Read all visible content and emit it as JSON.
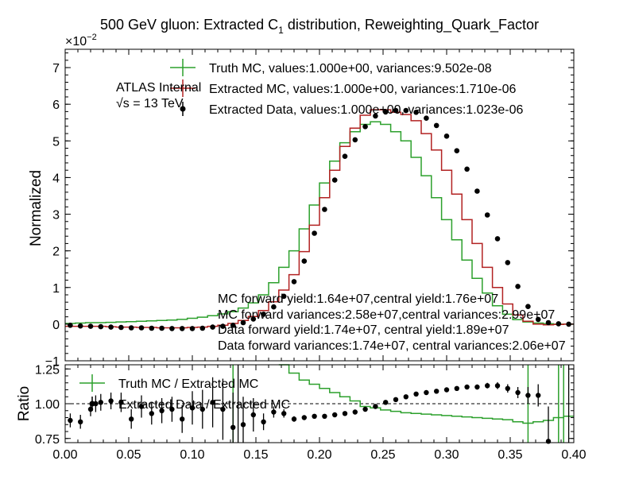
{
  "title_main": "500 GeV gluon: Extracted C",
  "title_sub": "1",
  "title_rest": " distribution, Reweighting_Quark_Factor",
  "exponent_label": "×10",
  "exponent_power": "−2",
  "atlas_label": "ATLAS Internal",
  "energy_label": "√s = 13 TeV",
  "notes": [
    "MC forward yield:1.64e+07,central yield:1.76e+07",
    "MC forward variances:2.58e+07,central variances:2.99e+07",
    "Data forward yield:1.74e+07, central yield:1.89e+07",
    "Data forward variances:1.74e+07, central variances:2.06e+07"
  ],
  "colors": {
    "truth": "#2ca02c",
    "mc": "#b22222",
    "data": "#000000"
  },
  "chart_data": [
    {
      "type": "line",
      "xlim": [
        0.0,
        0.4
      ],
      "ylim": [
        -1.0,
        7.5
      ],
      "ylabel": "Normalized",
      "yticks": [
        -1,
        0,
        1,
        2,
        3,
        4,
        5,
        6,
        7
      ],
      "ytick_labels": [
        "−1",
        "0",
        "1",
        "2",
        "3",
        "4",
        "5",
        "6",
        "7"
      ],
      "bin_width": 0.008,
      "x": [
        0.004,
        0.012,
        0.02,
        0.028,
        0.036,
        0.044,
        0.052,
        0.06,
        0.068,
        0.076,
        0.084,
        0.092,
        0.1,
        0.108,
        0.116,
        0.124,
        0.132,
        0.14,
        0.148,
        0.156,
        0.164,
        0.172,
        0.18,
        0.188,
        0.196,
        0.204,
        0.212,
        0.22,
        0.228,
        0.236,
        0.244,
        0.252,
        0.26,
        0.268,
        0.276,
        0.284,
        0.292,
        0.3,
        0.308,
        0.316,
        0.324,
        0.332,
        0.34,
        0.348,
        0.356,
        0.364,
        0.372,
        0.38,
        0.388,
        0.396
      ],
      "series": [
        {
          "name": "Truth MC, values:1.000e+00, variances:9.502e-08",
          "style": "step",
          "values": [
            0.02,
            0.03,
            0.04,
            0.04,
            0.05,
            0.06,
            0.07,
            0.08,
            0.09,
            0.1,
            0.11,
            0.13,
            0.16,
            0.19,
            0.23,
            0.28,
            0.34,
            0.44,
            0.58,
            0.8,
            1.13,
            1.55,
            2.0,
            2.6,
            3.25,
            3.85,
            4.45,
            4.95,
            5.25,
            5.45,
            5.52,
            5.45,
            5.25,
            5.0,
            4.55,
            4.05,
            3.45,
            2.85,
            2.3,
            1.75,
            1.25,
            0.85,
            0.5,
            0.27,
            0.12,
            0.06,
            0.03,
            0.01,
            0.0,
            0.0
          ]
        },
        {
          "name": "Extracted MC, values:1.000e+00, variances:1.710e-06",
          "style": "step",
          "values": [
            -0.06,
            -0.06,
            -0.06,
            -0.06,
            -0.07,
            -0.08,
            -0.08,
            -0.09,
            -0.09,
            -0.1,
            -0.1,
            -0.1,
            -0.09,
            -0.08,
            -0.06,
            -0.03,
            0.02,
            0.1,
            0.21,
            0.37,
            0.61,
            0.93,
            1.35,
            1.98,
            2.7,
            3.45,
            4.2,
            4.85,
            5.35,
            5.7,
            5.85,
            5.85,
            5.78,
            5.72,
            5.55,
            5.2,
            4.75,
            4.2,
            3.55,
            2.85,
            2.2,
            1.55,
            1.0,
            0.55,
            0.25,
            0.08,
            0.0,
            -0.02,
            -0.01,
            0.0
          ]
        },
        {
          "name": "Extracted Data, values:1.000e+00, variances:1.023e-06",
          "style": "points",
          "values": [
            -0.03,
            -0.05,
            -0.06,
            -0.07,
            -0.08,
            -0.09,
            -0.1,
            -0.1,
            -0.11,
            -0.11,
            -0.12,
            -0.12,
            -0.12,
            -0.11,
            -0.08,
            -0.06,
            -0.03,
            0.04,
            0.14,
            0.27,
            0.47,
            0.76,
            1.16,
            1.72,
            2.48,
            3.13,
            3.93,
            4.58,
            5.03,
            5.39,
            5.68,
            5.79,
            5.83,
            5.83,
            5.78,
            5.62,
            5.42,
            5.13,
            4.73,
            4.23,
            3.63,
            2.98,
            2.33,
            1.68,
            1.03,
            0.48,
            0.13,
            0.04,
            0.01,
            0.0
          ]
        }
      ]
    },
    {
      "type": "line",
      "xlim": [
        0.0,
        0.4
      ],
      "ylim": [
        0.72,
        1.28
      ],
      "ylabel": "Ratio",
      "xticks": [
        0.0,
        0.05,
        0.1,
        0.15,
        0.2,
        0.25,
        0.3,
        0.35,
        0.4
      ],
      "xtick_labels": [
        "0.00",
        "0.05",
        "0.10",
        "0.15",
        "0.20",
        "0.25",
        "0.30",
        "0.35",
        "0.40"
      ],
      "yticks": [
        0.75,
        1.0,
        1.25
      ],
      "ytick_labels": [
        "0.75",
        "1.00",
        "1.25"
      ],
      "reference_line": 1.0,
      "series": [
        {
          "name": "Truth MC / Extracted MC",
          "style": "step",
          "values": [
            null,
            null,
            null,
            null,
            null,
            null,
            null,
            null,
            null,
            null,
            null,
            null,
            null,
            null,
            null,
            null,
            null,
            null,
            null,
            null,
            null,
            1.35,
            1.22,
            1.17,
            1.14,
            1.11,
            1.08,
            1.05,
            1.02,
            0.98,
            0.97,
            0.955,
            0.945,
            0.935,
            0.93,
            0.925,
            0.92,
            0.915,
            0.91,
            0.905,
            0.9,
            0.895,
            0.89,
            0.885,
            0.87,
            0.86,
            0.87,
            0.88,
            0.9,
            0.91
          ]
        },
        {
          "name": "Extracted Data / Extracted MC",
          "style": "points",
          "x": [
            0.004,
            0.012,
            0.02,
            0.024,
            0.028,
            0.036,
            0.044,
            0.052,
            0.06,
            0.068,
            0.076,
            0.084,
            0.092,
            0.1,
            0.108,
            0.116,
            0.124,
            0.132,
            0.14,
            0.148,
            0.156,
            0.164,
            0.172,
            0.18,
            0.188,
            0.196,
            0.204,
            0.212,
            0.22,
            0.228,
            0.236,
            0.244,
            0.252,
            0.26,
            0.268,
            0.276,
            0.284,
            0.292,
            0.3,
            0.308,
            0.316,
            0.324,
            0.332,
            0.34,
            0.348,
            0.356,
            0.364,
            0.372,
            0.38
          ],
          "values": [
            0.88,
            0.87,
            0.96,
            1.0,
            1.01,
            1.02,
            1.01,
            0.89,
            0.98,
            0.93,
            0.95,
            0.96,
            0.89,
            0.97,
            0.96,
            1.01,
            0.96,
            0.83,
            0.85,
            0.92,
            0.87,
            0.94,
            0.93,
            0.89,
            0.9,
            0.91,
            0.91,
            0.92,
            0.93,
            0.94,
            0.96,
            0.98,
            1.01,
            1.03,
            1.05,
            1.07,
            1.08,
            1.09,
            1.1,
            1.11,
            1.12,
            1.12,
            1.13,
            1.13,
            1.11,
            1.08,
            1.06,
            1.06,
            0.73
          ],
          "errors": [
            0.05,
            0.05,
            0.05,
            0.06,
            0.06,
            0.06,
            0.07,
            0.07,
            0.08,
            0.08,
            0.09,
            0.09,
            0.1,
            0.12,
            0.14,
            0.18,
            0.22,
            0.25,
            0.2,
            0.12,
            0.06,
            0.04,
            0.03,
            0.02,
            0.015,
            0.012,
            0.01,
            0.01,
            0.01,
            0.01,
            0.01,
            0.01,
            0.01,
            0.01,
            0.01,
            0.01,
            0.01,
            0.01,
            0.012,
            0.013,
            0.015,
            0.018,
            0.02,
            0.025,
            0.03,
            0.04,
            0.06,
            0.08,
            0.25
          ]
        }
      ]
    }
  ]
}
